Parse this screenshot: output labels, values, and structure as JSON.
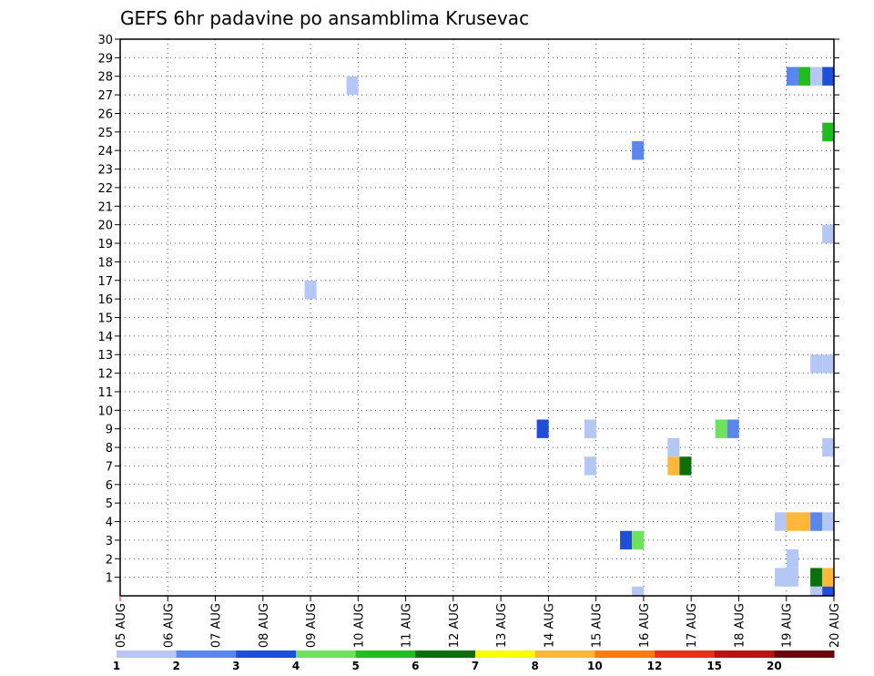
{
  "chart_data": {
    "type": "heatmap",
    "title": "GEFS 6hr padavine po ansamblima Krusevac",
    "xlabel": "",
    "ylabel": "",
    "x_tick_labels": [
      "05 AUG",
      "06 AUG",
      "07 AUG",
      "08 AUG",
      "09 AUG",
      "10 AUG",
      "11 AUG",
      "12 AUG",
      "13 AUG",
      "14 AUG",
      "15 AUG",
      "16 AUG",
      "17 AUG",
      "18 AUG",
      "19 AUG",
      "20 AUG"
    ],
    "y_tick_labels": [
      "1",
      "2",
      "3",
      "4",
      "5",
      "6",
      "7",
      "8",
      "9",
      "10",
      "11",
      "12",
      "13",
      "14",
      "15",
      "16",
      "17",
      "18",
      "19",
      "20",
      "21",
      "22",
      "23",
      "24",
      "25",
      "26",
      "27",
      "28",
      "29",
      "30"
    ],
    "x_range_days": [
      0,
      15
    ],
    "y_range": [
      0,
      30
    ],
    "grid": true,
    "colorbar": {
      "labels": [
        "1",
        "2",
        "3",
        "4",
        "5",
        "6",
        "7",
        "8",
        "10",
        "12",
        "15",
        "20"
      ],
      "colors": [
        "#b5c8f5",
        "#5b86ec",
        "#1e4fd6",
        "#6ee25c",
        "#1fbd1f",
        "#0c6e0c",
        "#ffff00",
        "#ffb73a",
        "#ff7a12",
        "#e8331c",
        "#b81414",
        "#6b0606"
      ]
    },
    "cells": [
      {
        "day": 4.88,
        "member": 27.5,
        "value": 1
      },
      {
        "day": 4.0,
        "member": 16.5,
        "value": 1
      },
      {
        "day": 8.88,
        "member": 9,
        "value": 3
      },
      {
        "day": 9.88,
        "member": 9,
        "value": 1
      },
      {
        "day": 9.88,
        "member": 7,
        "value": 1
      },
      {
        "day": 10.63,
        "member": 3,
        "value": 3
      },
      {
        "day": 10.88,
        "member": 3,
        "value": 4
      },
      {
        "day": 10.88,
        "member": 24,
        "value": 2
      },
      {
        "day": 10.88,
        "member": 0,
        "value": 1
      },
      {
        "day": 11.63,
        "member": 8,
        "value": 1
      },
      {
        "day": 11.63,
        "member": 7,
        "value": 8
      },
      {
        "day": 11.88,
        "member": 7,
        "value": 6
      },
      {
        "day": 12.63,
        "member": 9,
        "value": 4
      },
      {
        "day": 12.88,
        "member": 9,
        "value": 2
      },
      {
        "day": 13.88,
        "member": 4,
        "value": 1
      },
      {
        "day": 13.88,
        "member": 1,
        "value": 1
      },
      {
        "day": 14.13,
        "member": 4,
        "value": 8
      },
      {
        "day": 14.38,
        "member": 4,
        "value": 8
      },
      {
        "day": 14.63,
        "member": 4,
        "value": 2
      },
      {
        "day": 14.88,
        "member": 4,
        "value": 1
      },
      {
        "day": 14.13,
        "member": 1,
        "value": 1
      },
      {
        "day": 14.13,
        "member": 2,
        "value": 1
      },
      {
        "day": 14.13,
        "member": 28,
        "value": 2
      },
      {
        "day": 14.38,
        "member": 28,
        "value": 5
      },
      {
        "day": 14.63,
        "member": 28,
        "value": 1
      },
      {
        "day": 14.88,
        "member": 28,
        "value": 3
      },
      {
        "day": 14.88,
        "member": 25,
        "value": 5
      },
      {
        "day": 14.88,
        "member": 19.5,
        "value": 1
      },
      {
        "day": 14.63,
        "member": 12.5,
        "value": 1
      },
      {
        "day": 14.88,
        "member": 12.5,
        "value": 1
      },
      {
        "day": 14.88,
        "member": 8,
        "value": 1
      },
      {
        "day": 14.63,
        "member": 1,
        "value": 6
      },
      {
        "day": 14.88,
        "member": 1,
        "value": 8
      },
      {
        "day": 14.63,
        "member": 0,
        "value": 1
      },
      {
        "day": 14.88,
        "member": 0,
        "value": 3
      }
    ]
  }
}
